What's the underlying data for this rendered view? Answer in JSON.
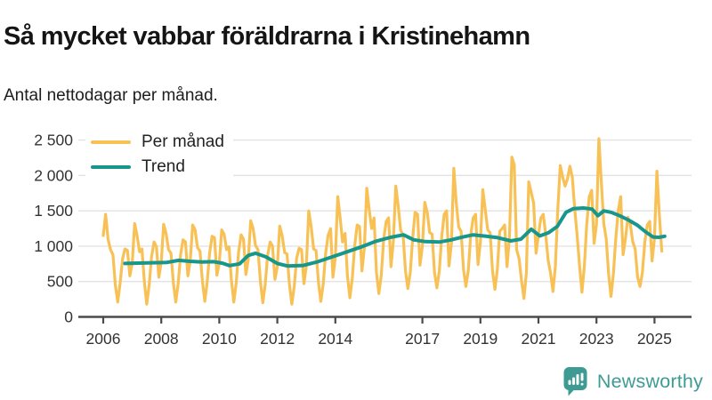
{
  "header": {
    "title": "Så mycket vabbar föräldrarna i Kristinehamn",
    "subtitle": "Antal nettodagar per månad."
  },
  "colors": {
    "monthly_line": "#f8c156",
    "trend_line": "#17968b",
    "grid": "#e3e3e3",
    "axis": "#4a4a4a",
    "axis_text": "#333333",
    "brand_teal": "#3e9b94"
  },
  "legend": {
    "items": [
      {
        "label": "Per månad",
        "color": "#f8c156"
      },
      {
        "label": "Trend",
        "color": "#17968b"
      }
    ]
  },
  "footer": {
    "brand": "Newsworthy",
    "icon": "newsworthy-logo-icon"
  },
  "chart_data": {
    "type": "line",
    "title": "Så mycket vabbar föräldrarna i Kristinehamn",
    "subtitle": "Antal nettodagar per månad.",
    "ylabel": "Antal nettodagar per månad",
    "xlabel": "",
    "ylim": [
      0,
      2500
    ],
    "yticks": [
      0,
      500,
      1000,
      1500,
      2000,
      2500
    ],
    "ytick_labels": [
      "0",
      "500",
      "1 000",
      "1 500",
      "2 000",
      "2 500"
    ],
    "xticks": [
      2006,
      2008,
      2010,
      2012,
      2014,
      2017,
      2019,
      2021,
      2023,
      2025
    ],
    "xtick_labels": [
      "2006",
      "2008",
      "2010",
      "2012",
      "2014",
      "2017",
      "2019",
      "2021",
      "2023",
      "2025"
    ],
    "x_range": [
      2006,
      2025.4
    ],
    "grid": "horizontal",
    "legend_position": "top-left",
    "series": [
      {
        "name": "Per månad",
        "kind": "monthly",
        "start_year": 2006,
        "values_by_year": {
          "2006": [
            1150,
            1450,
            1100,
            950,
            880,
            450,
            210,
            480,
            820,
            960,
            940,
            580
          ],
          "2007": [
            760,
            1320,
            1150,
            920,
            960,
            500,
            180,
            450,
            850,
            1060,
            990,
            560
          ],
          "2008": [
            780,
            1310,
            1180,
            950,
            900,
            480,
            210,
            470,
            880,
            1090,
            1060,
            580
          ],
          "2009": [
            800,
            1300,
            1230,
            980,
            930,
            510,
            220,
            490,
            900,
            1140,
            1120,
            590
          ],
          "2010": [
            760,
            1230,
            1170,
            950,
            990,
            520,
            210,
            480,
            920,
            1160,
            1100,
            600
          ],
          "2011": [
            820,
            1360,
            1250,
            1010,
            950,
            500,
            200,
            460,
            870,
            1060,
            1000,
            530
          ],
          "2012": [
            710,
            1285,
            1150,
            910,
            890,
            460,
            180,
            430,
            830,
            970,
            950,
            470
          ],
          "2013": [
            720,
            1500,
            1280,
            960,
            940,
            490,
            220,
            470,
            900,
            1150,
            1250,
            560
          ],
          "2014": [
            850,
            1700,
            1400,
            1060,
            1180,
            580,
            270,
            540,
            1000,
            1300,
            1280,
            650
          ],
          "2015": [
            980,
            1820,
            1520,
            1250,
            1400,
            620,
            330,
            590,
            1100,
            1350,
            1400,
            710
          ],
          "2016": [
            1070,
            1850,
            1570,
            1220,
            1160,
            650,
            400,
            630,
            1120,
            1480,
            1450,
            730
          ],
          "2017": [
            1000,
            1620,
            1480,
            1190,
            1170,
            630,
            410,
            650,
            1130,
            1450,
            1500,
            720
          ],
          "2018": [
            1040,
            2100,
            1620,
            1270,
            1210,
            670,
            430,
            660,
            1160,
            1400,
            1450,
            740
          ],
          "2019": [
            1060,
            1800,
            1520,
            1230,
            1190,
            650,
            390,
            670,
            1210,
            1250,
            1300,
            710
          ],
          "2020": [
            1120,
            2260,
            2150,
            950,
            820,
            510,
            260,
            620,
            1910,
            1760,
            1610,
            900
          ],
          "2021": [
            1160,
            1400,
            1450,
            1160,
            800,
            620,
            360,
            710,
            1510,
            2140,
            1980,
            1850
          ],
          "2022": [
            1950,
            2130,
            1980,
            1520,
            1150,
            720,
            350,
            720,
            1320,
            1700,
            1790,
            1040
          ],
          "2023": [
            1310,
            2520,
            1920,
            1320,
            1110,
            610,
            290,
            610,
            1110,
            1500,
            1700,
            880
          ],
          "2024": [
            1110,
            1410,
            1310,
            1060,
            960,
            560,
            430,
            630,
            1060,
            1300,
            1350,
            790
          ],
          "2025": [
            1120,
            2060,
            1450,
            930
          ]
        }
      },
      {
        "name": "Trend",
        "kind": "points",
        "points": [
          [
            2006.75,
            755
          ],
          [
            2007.2,
            760
          ],
          [
            2007.7,
            765
          ],
          [
            2008.2,
            770
          ],
          [
            2008.6,
            800
          ],
          [
            2009.0,
            785
          ],
          [
            2009.4,
            775
          ],
          [
            2009.8,
            780
          ],
          [
            2010.1,
            760
          ],
          [
            2010.35,
            725
          ],
          [
            2010.7,
            750
          ],
          [
            2011.0,
            870
          ],
          [
            2011.25,
            900
          ],
          [
            2011.6,
            850
          ],
          [
            2012.0,
            755
          ],
          [
            2012.35,
            720
          ],
          [
            2012.9,
            728
          ],
          [
            2013.4,
            780
          ],
          [
            2013.9,
            850
          ],
          [
            2014.4,
            920
          ],
          [
            2014.9,
            990
          ],
          [
            2015.4,
            1070
          ],
          [
            2015.9,
            1125
          ],
          [
            2016.35,
            1160
          ],
          [
            2016.7,
            1090
          ],
          [
            2017.1,
            1065
          ],
          [
            2017.6,
            1060
          ],
          [
            2018.0,
            1090
          ],
          [
            2018.4,
            1130
          ],
          [
            2018.75,
            1160
          ],
          [
            2019.2,
            1140
          ],
          [
            2019.6,
            1120
          ],
          [
            2020.05,
            1075
          ],
          [
            2020.4,
            1100
          ],
          [
            2020.75,
            1240
          ],
          [
            2021.05,
            1145
          ],
          [
            2021.35,
            1190
          ],
          [
            2021.65,
            1280
          ],
          [
            2021.95,
            1480
          ],
          [
            2022.2,
            1530
          ],
          [
            2022.55,
            1540
          ],
          [
            2022.85,
            1525
          ],
          [
            2023.05,
            1430
          ],
          [
            2023.25,
            1500
          ],
          [
            2023.5,
            1480
          ],
          [
            2023.8,
            1430
          ],
          [
            2024.1,
            1370
          ],
          [
            2024.4,
            1300
          ],
          [
            2024.7,
            1200
          ],
          [
            2024.95,
            1130
          ],
          [
            2025.15,
            1125
          ],
          [
            2025.35,
            1140
          ]
        ]
      }
    ]
  }
}
